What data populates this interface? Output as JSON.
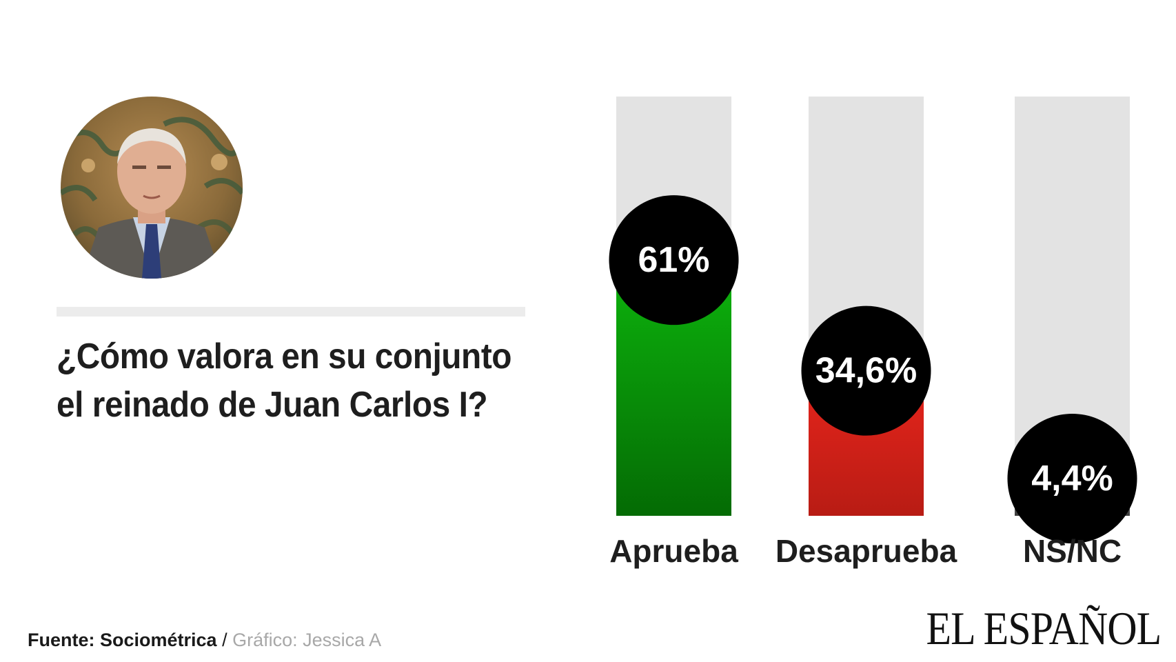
{
  "question": {
    "line1": "¿Cómo valora en su conjunto",
    "line2": "el reinado de Juan Carlos I?"
  },
  "footer": {
    "source": "Fuente: Sociométrica",
    "separator": " / ",
    "credit": "Gráfico: Jessica A"
  },
  "brand": "EL ESPAÑOL",
  "colors": {
    "track": "#e3e3e3",
    "approve_top": "#0db40d",
    "approve_bottom": "#046b04",
    "disapprove_top": "#e8251c",
    "disapprove_bottom": "#b81c14",
    "nsnc_top": "#777777",
    "nsnc_bottom": "#3a3a3a",
    "bubble": "#000000",
    "bubble_text": "#ffffff",
    "label": "#1e1e1e"
  },
  "chart_data": {
    "type": "bar",
    "categories": [
      "Aprueba",
      "Desaprueba",
      "NS/NC"
    ],
    "values": [
      61,
      34.6,
      4.4
    ],
    "value_labels": [
      "61%",
      "34,6%",
      "4,4%"
    ],
    "ylim": [
      0,
      100
    ],
    "title": "",
    "xlabel": "",
    "ylabel": "",
    "grid": false,
    "legend": "none"
  }
}
